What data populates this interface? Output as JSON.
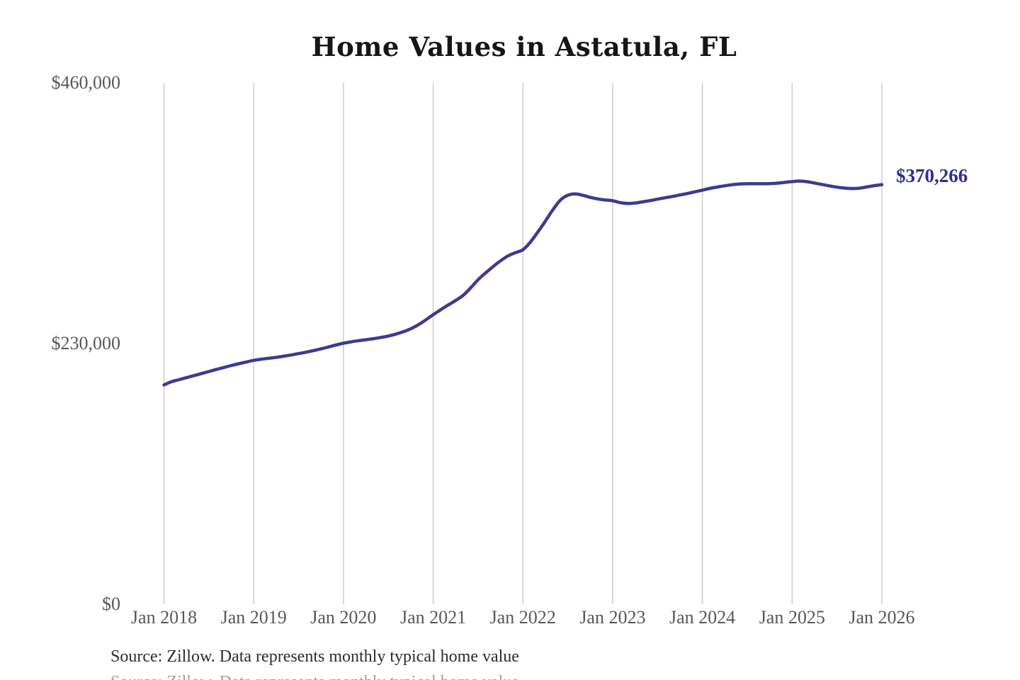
{
  "chart": {
    "title": "Home Values in Astatula, FL",
    "latest_value_label": "$370,266",
    "source": "Source: Zillow. Data represents monthly typical home value"
  },
  "colors": {
    "line": "#3e3a90",
    "latest_label": "#322c92",
    "gridline": "#cdcdcd",
    "tick_text": "#55585c",
    "title_text": "#161616",
    "source_text": "#2d2d2d",
    "background": "#ffffff"
  },
  "chart_data": {
    "type": "line",
    "title": "Home Values in Astatula, FL",
    "series_name": "Monthly typical home value",
    "frequency": "monthly",
    "start_month": "2018-01",
    "end_month": "2026-01",
    "values": [
      193500,
      196300,
      198100,
      199900,
      201700,
      203500,
      205300,
      207100,
      208900,
      210600,
      212200,
      213700,
      215200,
      216200,
      217000,
      217800,
      218800,
      219900,
      221100,
      222400,
      223800,
      225300,
      227000,
      228700,
      230300,
      231500,
      232500,
      233400,
      234300,
      235400,
      236600,
      238300,
      240400,
      243000,
      246500,
      250800,
      255500,
      259800,
      264000,
      268000,
      272500,
      279000,
      286300,
      292300,
      297800,
      303000,
      307300,
      310200,
      312800,
      319500,
      328500,
      338000,
      348000,
      356500,
      360800,
      362000,
      360800,
      359000,
      357600,
      356700,
      356000,
      354400,
      353600,
      354000,
      355000,
      356100,
      357400,
      358600,
      359800,
      361100,
      362400,
      363900,
      365400,
      366900,
      368100,
      369200,
      370200,
      370800,
      371000,
      371000,
      371000,
      371100,
      371500,
      372200,
      372900,
      373400,
      372800,
      371600,
      370400,
      369100,
      368000,
      367200,
      366800,
      367100,
      368200,
      369300,
      370266
    ],
    "latest_value": 370266,
    "latest_value_label": "$370,266",
    "ylim": [
      0,
      460000
    ],
    "y_ticks": [
      {
        "value": 0,
        "label": "$0"
      },
      {
        "value": 230000,
        "label": "$230,000"
      },
      {
        "value": 460000,
        "label": "$460,000"
      }
    ],
    "x_ticks": [
      {
        "month_index": 0,
        "label": "Jan 2018"
      },
      {
        "month_index": 12,
        "label": "Jan 2019"
      },
      {
        "month_index": 24,
        "label": "Jan 2020"
      },
      {
        "month_index": 36,
        "label": "Jan 2021"
      },
      {
        "month_index": 48,
        "label": "Jan 2022"
      },
      {
        "month_index": 60,
        "label": "Jan 2023"
      },
      {
        "month_index": 72,
        "label": "Jan 2024"
      },
      {
        "month_index": 84,
        "label": "Jan 2025"
      },
      {
        "month_index": 96,
        "label": "Jan 2026"
      }
    ],
    "grid": "vertical-only",
    "legend": "none"
  }
}
